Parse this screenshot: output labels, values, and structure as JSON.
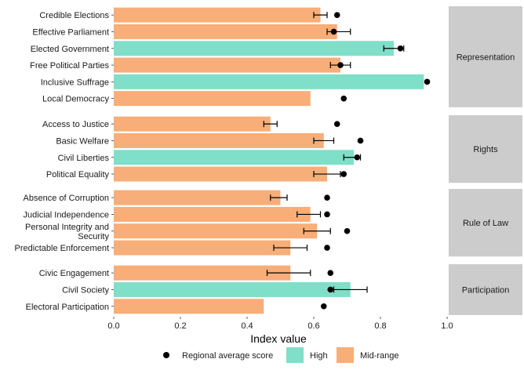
{
  "chart_data": {
    "type": "bar",
    "orientation": "horizontal",
    "xlabel": "Index value",
    "xlim": [
      0,
      1.0
    ],
    "xticks": [
      "0.0",
      "0.2",
      "0.4",
      "0.6",
      "0.8",
      "1.0"
    ],
    "grid": false,
    "legend_position": "bottom",
    "colors": {
      "High": "#7fdfc8",
      "Mid-range": "#f7ae78",
      "point": "#000000",
      "panel": "#cccccc"
    },
    "legend": [
      {
        "label": "Regional average score",
        "kind": "point"
      },
      {
        "label": "High",
        "kind": "bar"
      },
      {
        "label": "Mid-range",
        "kind": "bar"
      }
    ],
    "panels": [
      {
        "name": "Representation",
        "rows": [
          {
            "label": "Credible Elections",
            "value": 0.62,
            "category": "Mid-range",
            "err": [
              0.6,
              0.64
            ],
            "avg": 0.67
          },
          {
            "label": "Effective Parliament",
            "value": 0.67,
            "category": "Mid-range",
            "err": [
              0.64,
              0.71
            ],
            "avg": 0.66
          },
          {
            "label": "Elected Government",
            "value": 0.84,
            "category": "High",
            "err": [
              0.81,
              0.87
            ],
            "avg": 0.86
          },
          {
            "label": "Free Political Parties",
            "value": 0.68,
            "category": "Mid-range",
            "err": [
              0.65,
              0.71
            ],
            "avg": 0.68
          },
          {
            "label": "Inclusive Suffrage",
            "value": 0.93,
            "category": "High",
            "err": null,
            "avg": 0.94
          },
          {
            "label": "Local Democracy",
            "value": 0.59,
            "category": "Mid-range",
            "err": null,
            "avg": 0.69
          }
        ]
      },
      {
        "name": "Rights",
        "rows": [
          {
            "label": "Access to Justice",
            "value": 0.47,
            "category": "Mid-range",
            "err": [
              0.45,
              0.49
            ],
            "avg": 0.67
          },
          {
            "label": "Basic Welfare",
            "value": 0.63,
            "category": "Mid-range",
            "err": [
              0.6,
              0.66
            ],
            "avg": 0.74
          },
          {
            "label": "Civil Liberties",
            "value": 0.72,
            "category": "High",
            "err": [
              0.69,
              0.74
            ],
            "avg": 0.73
          },
          {
            "label": "Political Equality",
            "value": 0.64,
            "category": "Mid-range",
            "err": [
              0.6,
              0.68
            ],
            "avg": 0.69
          }
        ]
      },
      {
        "name": "Rule of Law",
        "rows": [
          {
            "label": "Absence of Corruption",
            "value": 0.5,
            "category": "Mid-range",
            "err": [
              0.47,
              0.52
            ],
            "avg": 0.64
          },
          {
            "label": "Judicial Independence",
            "value": 0.59,
            "category": "Mid-range",
            "err": [
              0.55,
              0.62
            ],
            "avg": 0.64
          },
          {
            "label": "Personal Integrity and Security",
            "value": 0.61,
            "category": "Mid-range",
            "err": [
              0.57,
              0.65
            ],
            "avg": 0.7
          },
          {
            "label": "Predictable Enforcement",
            "value": 0.53,
            "category": "Mid-range",
            "err": [
              0.48,
              0.58
            ],
            "avg": 0.64
          }
        ]
      },
      {
        "name": "Participation",
        "rows": [
          {
            "label": "Civic Engagement",
            "value": 0.53,
            "category": "Mid-range",
            "err": [
              0.46,
              0.59
            ],
            "avg": 0.65
          },
          {
            "label": "Civil Society",
            "value": 0.71,
            "category": "High",
            "err": [
              0.66,
              0.76
            ],
            "avg": 0.65
          },
          {
            "label": "Electoral Participation",
            "value": 0.45,
            "category": "Mid-range",
            "err": null,
            "avg": 0.63
          }
        ]
      }
    ]
  }
}
